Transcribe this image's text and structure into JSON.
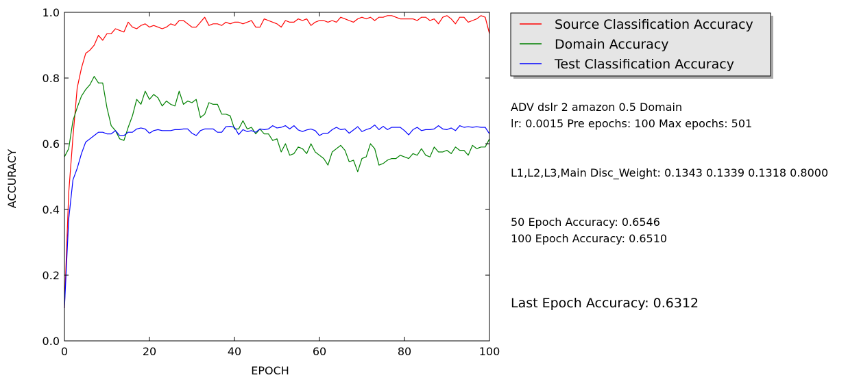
{
  "chart_data": {
    "type": "line",
    "xlabel": "EPOCH",
    "ylabel": "ACCURACY",
    "xlim": [
      0,
      100
    ],
    "ylim": [
      0.0,
      1.0
    ],
    "xticks": [
      "0",
      "20",
      "40",
      "60",
      "80",
      "100"
    ],
    "yticks": [
      "0.0",
      "0.2",
      "0.4",
      "0.6",
      "0.8",
      "1.0"
    ],
    "grid": false,
    "legend_placement": "outside-top-right",
    "series": [
      {
        "name": "Source Classification Accuracy",
        "color": "#ff0000",
        "values": [
          0.1,
          0.45,
          0.62,
          0.77,
          0.83,
          0.875,
          0.885,
          0.9,
          0.93,
          0.915,
          0.935,
          0.935,
          0.95,
          0.945,
          0.94,
          0.97,
          0.955,
          0.95,
          0.96,
          0.965,
          0.955,
          0.96,
          0.955,
          0.95,
          0.955,
          0.965,
          0.96,
          0.975,
          0.975,
          0.965,
          0.955,
          0.955,
          0.97,
          0.985,
          0.96,
          0.965,
          0.965,
          0.96,
          0.97,
          0.965,
          0.97,
          0.97,
          0.965,
          0.97,
          0.975,
          0.955,
          0.955,
          0.98,
          0.975,
          0.97,
          0.965,
          0.955,
          0.975,
          0.97,
          0.97,
          0.98,
          0.975,
          0.98,
          0.96,
          0.97,
          0.975,
          0.975,
          0.97,
          0.975,
          0.97,
          0.985,
          0.98,
          0.975,
          0.97,
          0.98,
          0.985,
          0.98,
          0.985,
          0.975,
          0.985,
          0.985,
          0.99,
          0.99,
          0.985,
          0.98,
          0.98,
          0.98,
          0.98,
          0.975,
          0.985,
          0.985,
          0.975,
          0.98,
          0.965,
          0.985,
          0.99,
          0.98,
          0.965,
          0.985,
          0.985,
          0.97,
          0.975,
          0.98,
          0.99,
          0.985,
          0.935
        ]
      },
      {
        "name": "Domain Accuracy",
        "color": "#008000",
        "values": [
          0.56,
          0.585,
          0.67,
          0.71,
          0.745,
          0.765,
          0.78,
          0.805,
          0.785,
          0.785,
          0.71,
          0.655,
          0.64,
          0.615,
          0.61,
          0.65,
          0.685,
          0.735,
          0.72,
          0.76,
          0.735,
          0.75,
          0.74,
          0.715,
          0.73,
          0.72,
          0.715,
          0.76,
          0.72,
          0.73,
          0.725,
          0.735,
          0.68,
          0.69,
          0.725,
          0.72,
          0.72,
          0.69,
          0.69,
          0.685,
          0.645,
          0.645,
          0.67,
          0.645,
          0.65,
          0.63,
          0.645,
          0.63,
          0.63,
          0.61,
          0.615,
          0.575,
          0.6,
          0.565,
          0.57,
          0.59,
          0.585,
          0.57,
          0.6,
          0.575,
          0.565,
          0.555,
          0.535,
          0.575,
          0.585,
          0.595,
          0.58,
          0.545,
          0.55,
          0.515,
          0.555,
          0.56,
          0.6,
          0.585,
          0.535,
          0.54,
          0.55,
          0.555,
          0.555,
          0.565,
          0.56,
          0.555,
          0.57,
          0.565,
          0.585,
          0.565,
          0.56,
          0.59,
          0.575,
          0.575,
          0.58,
          0.57,
          0.59,
          0.58,
          0.58,
          0.565,
          0.595,
          0.585,
          0.59,
          0.59,
          0.615
        ]
      },
      {
        "name": "Test Classification Accuracy",
        "color": "#0000ff",
        "values": [
          0.1,
          0.37,
          0.49,
          0.525,
          0.57,
          0.605,
          0.615,
          0.625,
          0.635,
          0.635,
          0.63,
          0.63,
          0.64,
          0.625,
          0.625,
          0.635,
          0.635,
          0.645,
          0.648,
          0.645,
          0.632,
          0.64,
          0.643,
          0.64,
          0.64,
          0.64,
          0.643,
          0.643,
          0.645,
          0.645,
          0.632,
          0.625,
          0.64,
          0.645,
          0.645,
          0.645,
          0.635,
          0.635,
          0.652,
          0.653,
          0.65,
          0.628,
          0.643,
          0.637,
          0.64,
          0.635,
          0.645,
          0.643,
          0.645,
          0.655,
          0.648,
          0.65,
          0.655,
          0.645,
          0.655,
          0.642,
          0.637,
          0.642,
          0.645,
          0.64,
          0.625,
          0.632,
          0.632,
          0.643,
          0.65,
          0.643,
          0.645,
          0.632,
          0.642,
          0.652,
          0.637,
          0.643,
          0.647,
          0.657,
          0.643,
          0.653,
          0.643,
          0.65,
          0.65,
          0.65,
          0.64,
          0.627,
          0.643,
          0.65,
          0.64,
          0.643,
          0.643,
          0.645,
          0.655,
          0.645,
          0.643,
          0.648,
          0.64,
          0.655,
          0.65,
          0.652,
          0.65,
          0.652,
          0.65,
          0.65,
          0.63
        ]
      }
    ]
  },
  "info": {
    "title_line": "ADV dslr 2 amazon 0.5 Domain",
    "params_line": "lr: 0.0015 Pre epochs: 100 Max epochs: 501",
    "weights_line": "L1,L2,L3,Main Disc_Weight: 0.1343 0.1339 0.1318 0.8000",
    "epoch50_line": "50 Epoch Accuracy: 0.6546",
    "epoch100_line": "100 Epoch Accuracy: 0.6510",
    "last_epoch_line": "Last Epoch Accuracy: 0.6312"
  }
}
